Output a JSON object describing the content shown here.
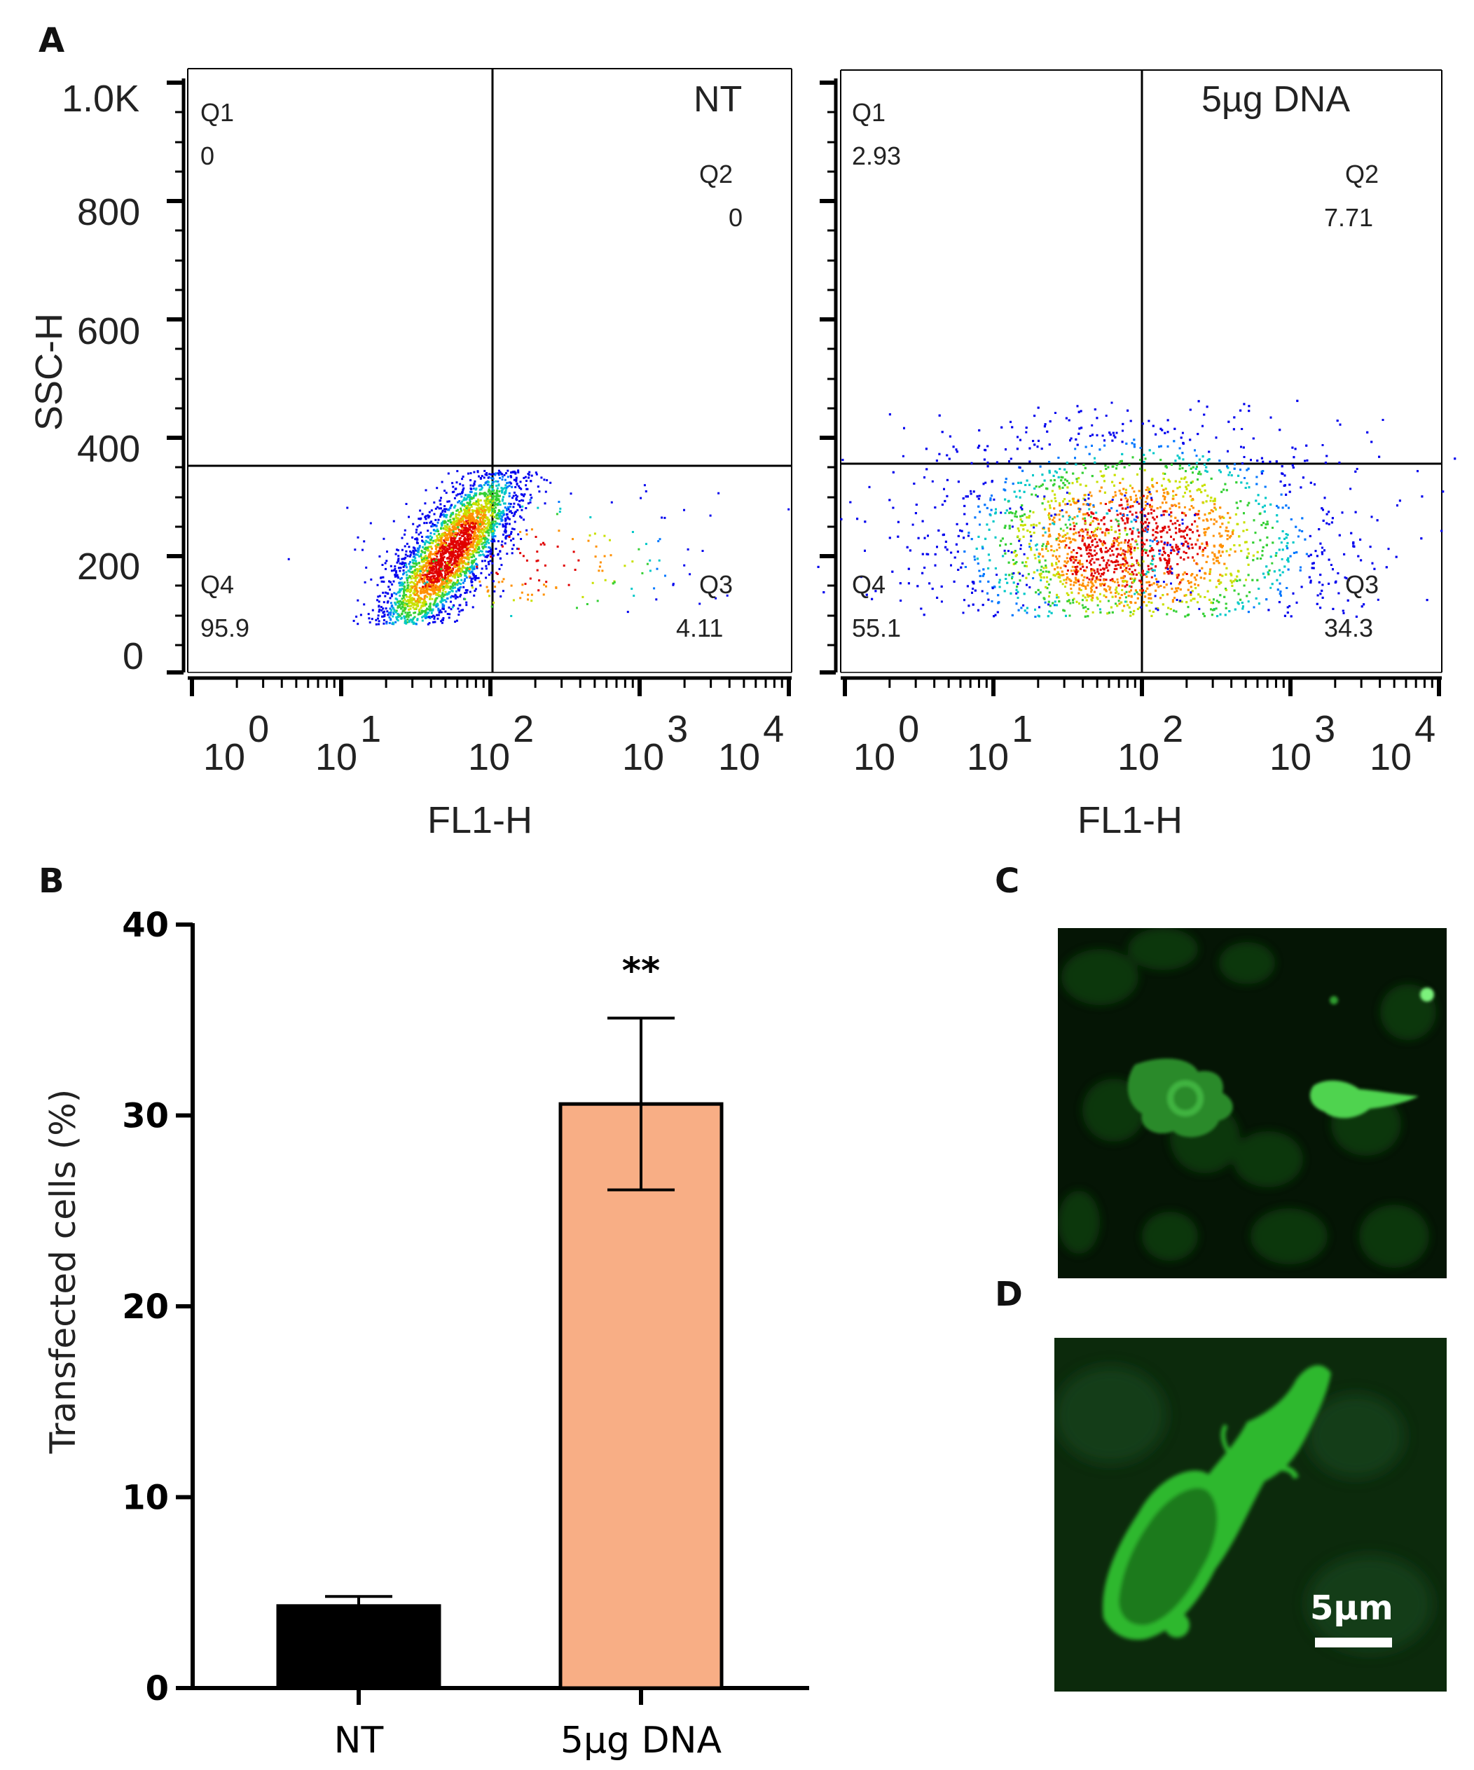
{
  "panel_labels": {
    "a": "A",
    "b": "B",
    "c": "C",
    "d": "D"
  },
  "flow": {
    "y_label": "SSC-H",
    "x_label": "FL1-H",
    "y_ticks": [
      "1.0K",
      "800",
      "600",
      "400",
      "200",
      "0"
    ],
    "x_ticks": [
      {
        "base": "10",
        "exp": "0"
      },
      {
        "base": "10",
        "exp": "1"
      },
      {
        "base": "10",
        "exp": "2"
      },
      {
        "base": "10",
        "exp": "3"
      },
      {
        "base": "10",
        "exp": "4"
      }
    ],
    "plots": [
      {
        "condition": "NT",
        "q1_name": "Q1",
        "q1": "0",
        "q2_name": "Q2",
        "q2": "0",
        "q3_name": "Q3",
        "q3": "4.11",
        "q4_name": "Q4",
        "q4": "95.9"
      },
      {
        "condition": "5µg DNA",
        "q1_name": "Q1",
        "q1": "2.93",
        "q2_name": "Q2",
        "q2": "7.71",
        "q3_name": "Q3",
        "q3": "34.3",
        "q4_name": "Q4",
        "q4": "55.1"
      }
    ]
  },
  "chart_data": {
    "type": "bar",
    "categories": [
      "NT",
      "5µg DNA"
    ],
    "values": [
      4.3,
      30.6
    ],
    "errors": [
      0.5,
      4.5
    ],
    "colors": [
      "#000000",
      "#f8ae85"
    ],
    "ylabel": "Transfected cells (%)",
    "xlabel": "",
    "ylim": [
      0,
      40
    ],
    "yticks": [
      0,
      10,
      20,
      30,
      40
    ],
    "annotation": "**",
    "grid": false
  },
  "micrographs": {
    "scale_bar": "5µm"
  }
}
